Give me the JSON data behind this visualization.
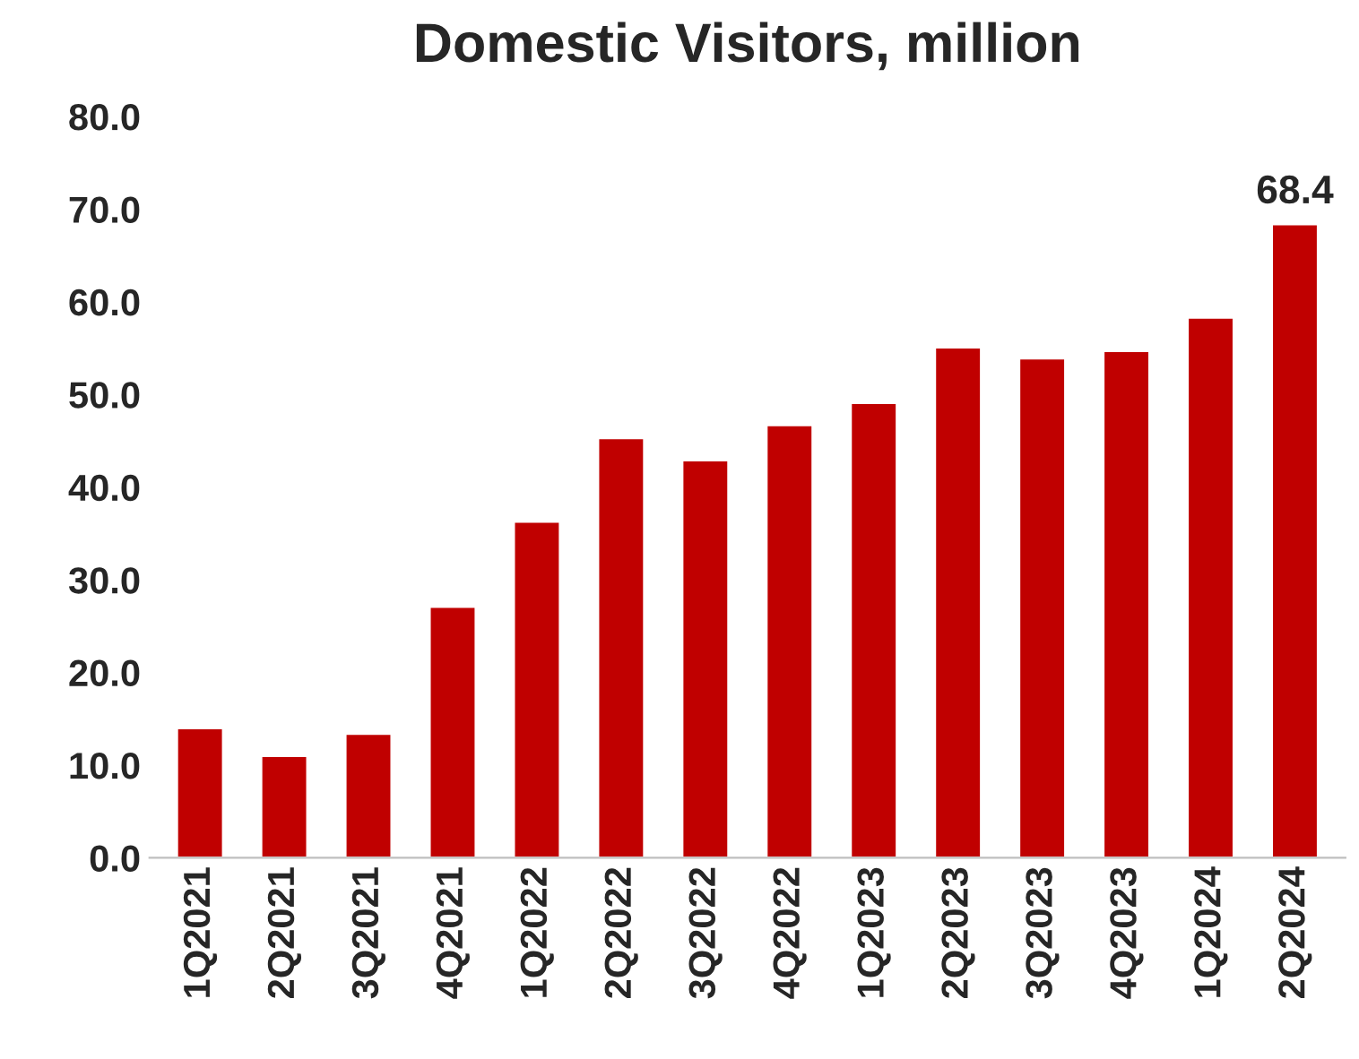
{
  "chart_data": {
    "type": "bar",
    "title": "Domestic Visitors, million",
    "categories": [
      "1Q2021",
      "2Q2021",
      "3Q2021",
      "4Q2021",
      "1Q2022",
      "2Q2022",
      "3Q2022",
      "4Q2022",
      "1Q2023",
      "2Q2023",
      "3Q2023",
      "4Q2023",
      "1Q2024",
      "2Q2024"
    ],
    "values": [
      14.0,
      11.0,
      13.4,
      27.1,
      36.3,
      45.3,
      42.9,
      46.7,
      49.1,
      55.1,
      53.9,
      54.7,
      58.3,
      68.4
    ],
    "value_labels": [
      null,
      null,
      null,
      null,
      null,
      null,
      null,
      null,
      null,
      null,
      null,
      null,
      null,
      "68.4"
    ],
    "color": "#c00000",
    "ylim": [
      0,
      80
    ],
    "yticks": [
      {
        "value": 0,
        "label": "0.0"
      },
      {
        "value": 10,
        "label": "10.0"
      },
      {
        "value": 20,
        "label": "20.0"
      },
      {
        "value": 30,
        "label": "30.0"
      },
      {
        "value": 40,
        "label": "40.0"
      },
      {
        "value": 50,
        "label": "50.0"
      },
      {
        "value": 60,
        "label": "60.0"
      },
      {
        "value": 70,
        "label": "70.0"
      },
      {
        "value": 80,
        "label": "80.0"
      }
    ],
    "grid": false,
    "legend": false
  }
}
